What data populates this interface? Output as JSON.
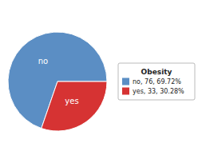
{
  "chart_data": {
    "type": "pie",
    "title": "Obesity",
    "categories": [
      "no",
      "yes"
    ],
    "values": [
      69.72,
      30.28
    ],
    "colors": [
      "#5b8ec4",
      "#d63333"
    ],
    "legend_labels": [
      "no, 76, 69.72%",
      "yes, 33, 30.28%"
    ],
    "legend": "right"
  }
}
